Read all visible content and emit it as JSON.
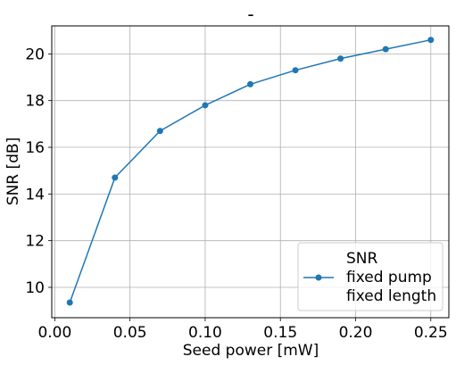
{
  "chart_data": {
    "type": "line",
    "title": "-",
    "xlabel": "Seed power [mW]",
    "ylabel": "SNR [dB]",
    "xlim": [
      -0.002,
      0.262
    ],
    "ylim": [
      8.7,
      21.2
    ],
    "x_ticks": [
      0.0,
      0.05,
      0.1,
      0.15,
      0.2,
      0.25
    ],
    "x_tick_labels": [
      "0.00",
      "0.05",
      "0.10",
      "0.15",
      "0.20",
      "0.25"
    ],
    "y_ticks": [
      10,
      12,
      14,
      16,
      18,
      20
    ],
    "y_tick_labels": [
      "10",
      "12",
      "14",
      "16",
      "18",
      "20"
    ],
    "grid": true,
    "legend_position": "lower-right",
    "series": [
      {
        "name_lines": [
          "SNR",
          "fixed pump",
          "fixed length"
        ],
        "color": "#1f77b4",
        "marker": "circle",
        "x": [
          0.01,
          0.04,
          0.07,
          0.1,
          0.13,
          0.16,
          0.19,
          0.22,
          0.25
        ],
        "y": [
          9.35,
          14.7,
          16.7,
          17.8,
          18.7,
          19.3,
          19.8,
          20.2,
          20.6
        ]
      }
    ]
  }
}
